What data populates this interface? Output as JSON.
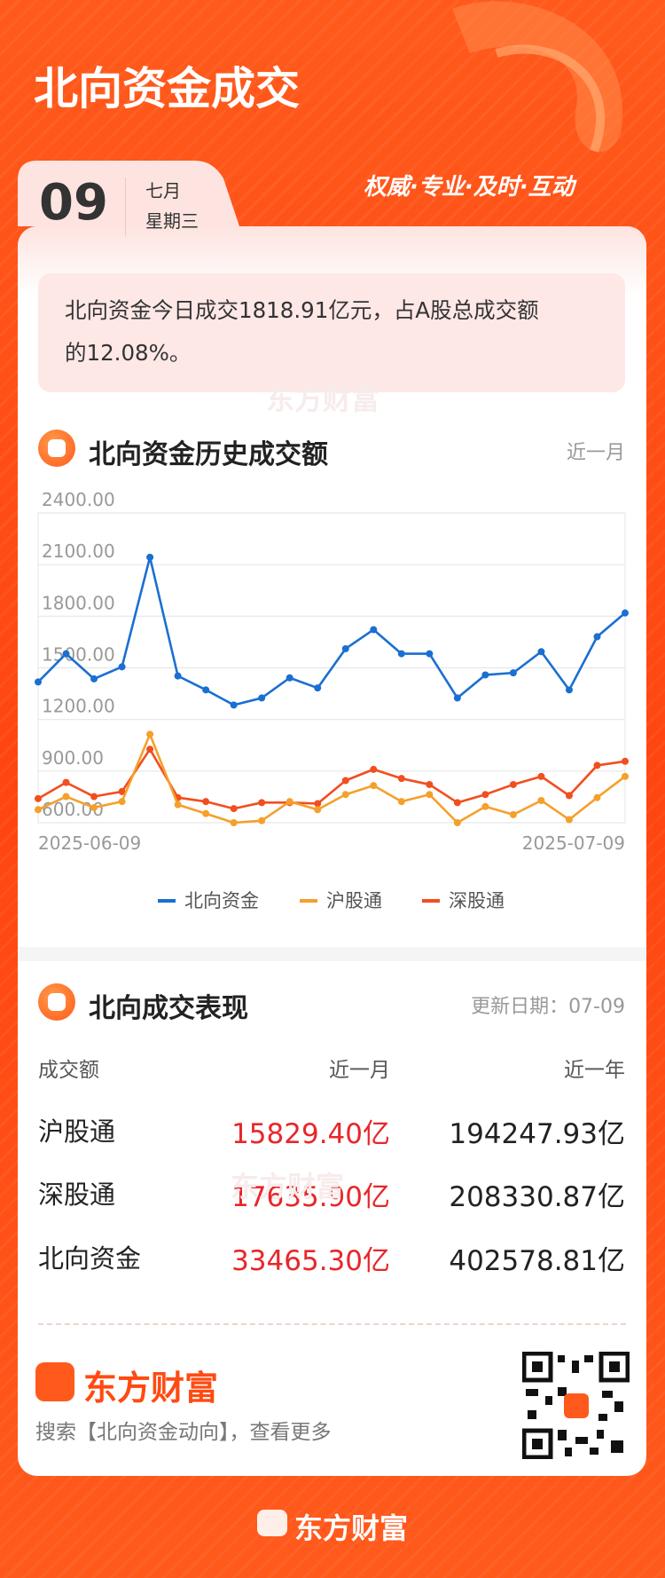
{
  "header": {
    "title": "北向资金成交",
    "day": "09",
    "month": "七月",
    "weekday": "星期三",
    "slogan": "权威·专业·及时·互动"
  },
  "summary": "北向资金今日成交1818.91亿元，占A股总成交额的12.08%。",
  "watermark": "东方财富",
  "history": {
    "title": "北向资金历史成交额",
    "range": "近一月"
  },
  "chart_data": {
    "type": "line",
    "categories": [
      "2025-06-09",
      null,
      null,
      null,
      null,
      null,
      null,
      null,
      null,
      null,
      null,
      null,
      null,
      null,
      null,
      null,
      null,
      null,
      null,
      null,
      null,
      "2025-07-09"
    ],
    "series": [
      {
        "name": "北向资金",
        "color": "#1a6fd1",
        "values": [
          1418,
          1582,
          1436,
          1506,
          2143,
          1453,
          1372,
          1284,
          1325,
          1442,
          1383,
          1611,
          1722,
          1582,
          1582,
          1325,
          1459,
          1471,
          1594,
          1372,
          1681,
          1818.91
        ]
      },
      {
        "name": "沪股通",
        "color": "#f5a02a",
        "values": [
          676,
          752,
          688,
          723,
          1114,
          705,
          653,
          600,
          612,
          723,
          676,
          764,
          816,
          723,
          764,
          600,
          694,
          647,
          729,
          618,
          746,
          869
        ]
      },
      {
        "name": "深股通",
        "color": "#f24e1e",
        "values": [
          740,
          834,
          752,
          781,
          1027,
          746,
          723,
          682,
          717,
          717,
          711,
          845,
          910,
          857,
          822,
          717,
          764,
          822,
          869,
          758,
          933,
          957
        ]
      }
    ],
    "ylim": [
      600,
      2400
    ],
    "yticks": [
      {
        "value": 600,
        "label": "600.00"
      },
      {
        "value": 900,
        "label": "900.00"
      },
      {
        "value": 1200,
        "label": "1200.00"
      },
      {
        "value": 1500,
        "label": "1500.00"
      },
      {
        "value": 1800,
        "label": "1800.00"
      },
      {
        "value": 2100,
        "label": "2100.00"
      },
      {
        "value": 2400,
        "label": "2400.00"
      }
    ],
    "grid": true,
    "legend": "bottom"
  },
  "performance": {
    "title": "北向成交表现",
    "updated": "更新日期：07-09",
    "table": {
      "header": [
        "成交额",
        "近一月",
        "近一年"
      ],
      "rows": [
        [
          "沪股通",
          "15829.40亿",
          "194247.93亿"
        ],
        [
          "深股通",
          "17635.90亿",
          "208330.87亿"
        ],
        [
          "北向资金",
          "33465.30亿",
          "402578.81亿"
        ]
      ]
    }
  },
  "footer": {
    "brand": "东方财富",
    "search": "搜索【北向资金动向】，查看更多",
    "bottom_brand": "东方财富"
  }
}
